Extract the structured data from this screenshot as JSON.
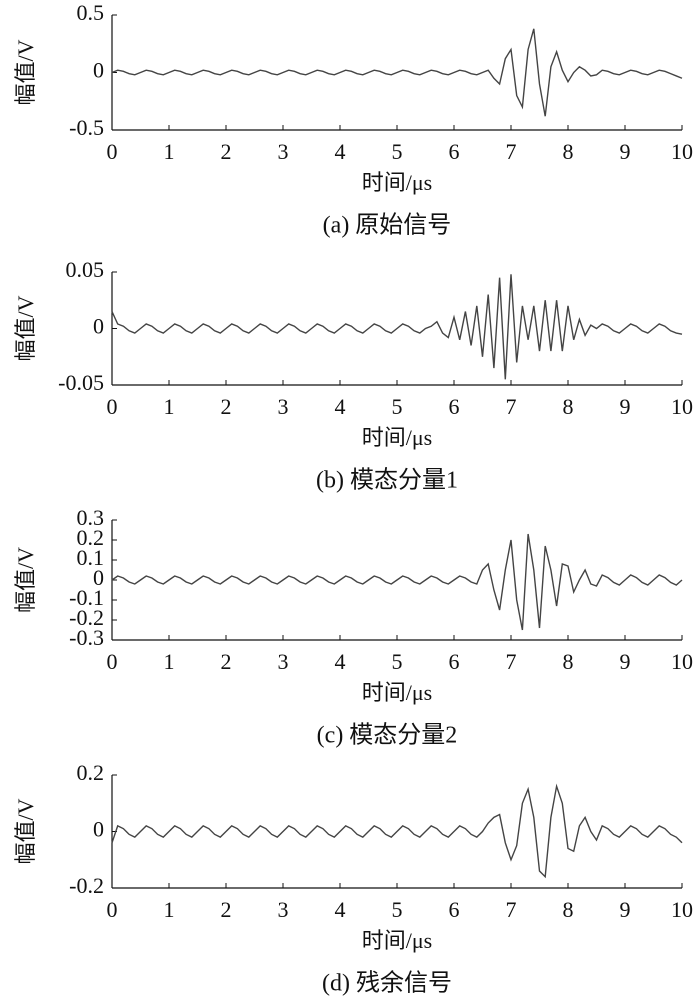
{
  "chart_data": [
    {
      "type": "line",
      "title": "(a) 原始信号",
      "xlabel": "时间/μs",
      "ylabel": "幅值/V",
      "color": "#444444",
      "xlim": [
        0,
        10
      ],
      "xticks": [
        0,
        1,
        2,
        3,
        4,
        5,
        6,
        7,
        8,
        9,
        10
      ],
      "ylim": [
        -0.5,
        0.5
      ],
      "yticks": [
        -0.5,
        0,
        0.5
      ],
      "x": [
        0,
        0.1,
        0.2,
        0.3,
        0.4,
        0.5,
        0.6,
        0.7,
        0.8,
        0.9,
        1,
        1.1,
        1.2,
        1.3,
        1.4,
        1.5,
        1.6,
        1.7,
        1.8,
        1.9,
        2,
        2.1,
        2.2,
        2.3,
        2.4,
        2.5,
        2.6,
        2.7,
        2.8,
        2.9,
        3,
        3.1,
        3.2,
        3.3,
        3.4,
        3.5,
        3.6,
        3.7,
        3.8,
        3.9,
        4,
        4.1,
        4.2,
        4.3,
        4.4,
        4.5,
        4.6,
        4.7,
        4.8,
        4.9,
        5,
        5.1,
        5.2,
        5.3,
        5.4,
        5.5,
        5.6,
        5.7,
        5.8,
        5.9,
        6,
        6.1,
        6.2,
        6.3,
        6.4,
        6.5,
        6.6,
        6.7,
        6.8,
        6.9,
        7,
        7.1,
        7.2,
        7.3,
        7.4,
        7.5,
        7.6,
        7.7,
        7.8,
        7.9,
        8,
        8.1,
        8.2,
        8.3,
        8.4,
        8.5,
        8.6,
        8.7,
        8.8,
        8.9,
        9,
        9.1,
        9.2,
        9.3,
        9.4,
        9.5,
        9.6,
        9.7,
        9.8,
        9.9,
        10
      ],
      "values": [
        0,
        0.02,
        0.01,
        -0.01,
        -0.02,
        0,
        0.02,
        0.01,
        -0.01,
        -0.02,
        0,
        0.02,
        0.01,
        -0.01,
        -0.02,
        0,
        0.02,
        0.01,
        -0.01,
        -0.02,
        0,
        0.02,
        0.01,
        -0.01,
        -0.02,
        0,
        0.02,
        0.01,
        -0.01,
        -0.02,
        0,
        0.02,
        0.01,
        -0.01,
        -0.02,
        0,
        0.02,
        0.01,
        -0.01,
        -0.02,
        0,
        0.02,
        0.01,
        -0.01,
        -0.02,
        0,
        0.02,
        0.01,
        -0.01,
        -0.02,
        0,
        0.02,
        0.01,
        -0.01,
        -0.02,
        0,
        0.02,
        0.01,
        -0.01,
        -0.02,
        0,
        0.02,
        0.01,
        -0.01,
        -0.02,
        0,
        0.02,
        -0.05,
        -0.1,
        0.12,
        0.2,
        -0.2,
        -0.3,
        0.2,
        0.38,
        -0.1,
        -0.38,
        0.05,
        0.18,
        0.02,
        -0.08,
        0,
        0.05,
        0.02,
        -0.03,
        -0.02,
        0.02,
        0.01,
        -0.01,
        -0.02,
        0,
        0.02,
        0.01,
        -0.01,
        -0.02,
        0,
        0.02,
        0.01,
        -0.01,
        -0.03,
        -0.05
      ]
    },
    {
      "type": "line",
      "title": "(b) 模态分量1",
      "xlabel": "时间/μs",
      "ylabel": "幅值/V",
      "color": "#444444",
      "xlim": [
        0,
        10
      ],
      "xticks": [
        0,
        1,
        2,
        3,
        4,
        5,
        6,
        7,
        8,
        9,
        10
      ],
      "ylim": [
        -0.05,
        0.05
      ],
      "yticks": [
        -0.05,
        0,
        0.05
      ],
      "x": [
        0,
        0.1,
        0.2,
        0.3,
        0.4,
        0.5,
        0.6,
        0.7,
        0.8,
        0.9,
        1,
        1.1,
        1.2,
        1.3,
        1.4,
        1.5,
        1.6,
        1.7,
        1.8,
        1.9,
        2,
        2.1,
        2.2,
        2.3,
        2.4,
        2.5,
        2.6,
        2.7,
        2.8,
        2.9,
        3,
        3.1,
        3.2,
        3.3,
        3.4,
        3.5,
        3.6,
        3.7,
        3.8,
        3.9,
        4,
        4.1,
        4.2,
        4.3,
        4.4,
        4.5,
        4.6,
        4.7,
        4.8,
        4.9,
        5,
        5.1,
        5.2,
        5.3,
        5.4,
        5.5,
        5.6,
        5.7,
        5.8,
        5.9,
        6,
        6.1,
        6.2,
        6.3,
        6.4,
        6.5,
        6.6,
        6.7,
        6.8,
        6.9,
        7,
        7.1,
        7.2,
        7.3,
        7.4,
        7.5,
        7.6,
        7.7,
        7.8,
        7.9,
        8,
        8.1,
        8.2,
        8.3,
        8.4,
        8.5,
        8.6,
        8.7,
        8.8,
        8.9,
        9,
        9.1,
        9.2,
        9.3,
        9.4,
        9.5,
        9.6,
        9.7,
        9.8,
        9.9,
        10
      ],
      "values": [
        0.015,
        0.004,
        0.002,
        -0.002,
        -0.004,
        0,
        0.004,
        0.002,
        -0.002,
        -0.004,
        0,
        0.004,
        0.002,
        -0.002,
        -0.004,
        0,
        0.004,
        0.002,
        -0.002,
        -0.004,
        0,
        0.004,
        0.002,
        -0.002,
        -0.004,
        0,
        0.004,
        0.002,
        -0.002,
        -0.004,
        0,
        0.004,
        0.002,
        -0.002,
        -0.004,
        0,
        0.004,
        0.002,
        -0.002,
        -0.004,
        0,
        0.004,
        0.002,
        -0.002,
        -0.004,
        0,
        0.004,
        0.002,
        -0.002,
        -0.004,
        0,
        0.004,
        0.002,
        -0.002,
        -0.004,
        0,
        0.002,
        0.006,
        -0.004,
        -0.008,
        0.01,
        -0.01,
        0.015,
        -0.015,
        0.02,
        -0.025,
        0.03,
        -0.035,
        0.045,
        -0.045,
        0.048,
        -0.03,
        0.02,
        -0.01,
        0.02,
        -0.02,
        0.025,
        -0.02,
        0.025,
        -0.02,
        0.02,
        -0.01,
        0.008,
        -0.006,
        0.003,
        0,
        0.004,
        0.002,
        -0.002,
        -0.004,
        0,
        0.004,
        0.002,
        -0.002,
        -0.004,
        0,
        0.004,
        0.002,
        -0.002,
        -0.004,
        -0.005
      ]
    },
    {
      "type": "line",
      "title": "(c) 模态分量2",
      "xlabel": "时间/μs",
      "ylabel": "幅值/V",
      "color": "#444444",
      "xlim": [
        0,
        10
      ],
      "xticks": [
        0,
        1,
        2,
        3,
        4,
        5,
        6,
        7,
        8,
        9,
        10
      ],
      "ylim": [
        -0.3,
        0.3
      ],
      "yticks": [
        -0.3,
        -0.2,
        -0.1,
        0,
        0.1,
        0.2,
        0.3
      ],
      "x": [
        0,
        0.1,
        0.2,
        0.3,
        0.4,
        0.5,
        0.6,
        0.7,
        0.8,
        0.9,
        1,
        1.1,
        1.2,
        1.3,
        1.4,
        1.5,
        1.6,
        1.7,
        1.8,
        1.9,
        2,
        2.1,
        2.2,
        2.3,
        2.4,
        2.5,
        2.6,
        2.7,
        2.8,
        2.9,
        3,
        3.1,
        3.2,
        3.3,
        3.4,
        3.5,
        3.6,
        3.7,
        3.8,
        3.9,
        4,
        4.1,
        4.2,
        4.3,
        4.4,
        4.5,
        4.6,
        4.7,
        4.8,
        4.9,
        5,
        5.1,
        5.2,
        5.3,
        5.4,
        5.5,
        5.6,
        5.7,
        5.8,
        5.9,
        6,
        6.1,
        6.2,
        6.3,
        6.4,
        6.5,
        6.6,
        6.7,
        6.8,
        6.9,
        7,
        7.1,
        7.2,
        7.3,
        7.4,
        7.5,
        7.6,
        7.7,
        7.8,
        7.9,
        8,
        8.1,
        8.2,
        8.3,
        8.4,
        8.5,
        8.6,
        8.7,
        8.8,
        8.9,
        9,
        9.1,
        9.2,
        9.3,
        9.4,
        9.5,
        9.6,
        9.7,
        9.8,
        9.9,
        10
      ],
      "values": [
        0,
        0.02,
        0.01,
        -0.01,
        -0.02,
        0,
        0.02,
        0.01,
        -0.01,
        -0.02,
        0,
        0.02,
        0.01,
        -0.01,
        -0.02,
        0,
        0.02,
        0.01,
        -0.01,
        -0.02,
        0,
        0.02,
        0.01,
        -0.01,
        -0.02,
        0,
        0.02,
        0.01,
        -0.01,
        -0.02,
        0,
        0.02,
        0.01,
        -0.01,
        -0.02,
        0,
        0.02,
        0.01,
        -0.01,
        -0.02,
        0,
        0.02,
        0.01,
        -0.01,
        -0.02,
        0,
        0.02,
        0.01,
        -0.01,
        -0.02,
        0,
        0.02,
        0.01,
        -0.01,
        -0.02,
        0,
        0.02,
        0.01,
        -0.01,
        -0.02,
        0,
        0.02,
        0.01,
        -0.01,
        -0.02,
        0.05,
        0.08,
        -0.05,
        -0.15,
        0.05,
        0.2,
        -0.1,
        -0.25,
        0.23,
        0.05,
        -0.24,
        0.17,
        0.05,
        -0.13,
        0.08,
        0.07,
        -0.06,
        0,
        0.05,
        -0.02,
        -0.03,
        0.025,
        0.012,
        -0.012,
        -0.025,
        0,
        0.025,
        0.012,
        -0.012,
        -0.025,
        0,
        0.025,
        0.012,
        -0.012,
        -0.025,
        0
      ]
    },
    {
      "type": "line",
      "title": "(d) 残余信号",
      "xlabel": "时间/μs",
      "ylabel": "幅值/V",
      "color": "#444444",
      "xlim": [
        0,
        10
      ],
      "xticks": [
        0,
        1,
        2,
        3,
        4,
        5,
        6,
        7,
        8,
        9,
        10
      ],
      "ylim": [
        -0.2,
        0.2
      ],
      "yticks": [
        -0.2,
        0,
        0.2
      ],
      "x": [
        0,
        0.1,
        0.2,
        0.3,
        0.4,
        0.5,
        0.6,
        0.7,
        0.8,
        0.9,
        1,
        1.1,
        1.2,
        1.3,
        1.4,
        1.5,
        1.6,
        1.7,
        1.8,
        1.9,
        2,
        2.1,
        2.2,
        2.3,
        2.4,
        2.5,
        2.6,
        2.7,
        2.8,
        2.9,
        3,
        3.1,
        3.2,
        3.3,
        3.4,
        3.5,
        3.6,
        3.7,
        3.8,
        3.9,
        4,
        4.1,
        4.2,
        4.3,
        4.4,
        4.5,
        4.6,
        4.7,
        4.8,
        4.9,
        5,
        5.1,
        5.2,
        5.3,
        5.4,
        5.5,
        5.6,
        5.7,
        5.8,
        5.9,
        6,
        6.1,
        6.2,
        6.3,
        6.4,
        6.5,
        6.6,
        6.7,
        6.8,
        6.9,
        7,
        7.1,
        7.2,
        7.3,
        7.4,
        7.5,
        7.6,
        7.7,
        7.8,
        7.9,
        8,
        8.1,
        8.2,
        8.3,
        8.4,
        8.5,
        8.6,
        8.7,
        8.8,
        8.9,
        9,
        9.1,
        9.2,
        9.3,
        9.4,
        9.5,
        9.6,
        9.7,
        9.8,
        9.9,
        10
      ],
      "values": [
        -0.04,
        0.02,
        0.01,
        -0.01,
        -0.02,
        0,
        0.02,
        0.01,
        -0.01,
        -0.02,
        0,
        0.02,
        0.01,
        -0.01,
        -0.02,
        0,
        0.02,
        0.01,
        -0.01,
        -0.02,
        0,
        0.02,
        0.01,
        -0.01,
        -0.02,
        0,
        0.02,
        0.01,
        -0.01,
        -0.02,
        0,
        0.02,
        0.01,
        -0.01,
        -0.02,
        0,
        0.02,
        0.01,
        -0.01,
        -0.02,
        0,
        0.02,
        0.01,
        -0.01,
        -0.02,
        0,
        0.02,
        0.01,
        -0.01,
        -0.02,
        0,
        0.02,
        0.01,
        -0.01,
        -0.02,
        0,
        0.02,
        0.01,
        -0.01,
        -0.02,
        0,
        0.02,
        0.01,
        -0.01,
        -0.02,
        0,
        0.03,
        0.05,
        0.06,
        -0.04,
        -0.1,
        -0.05,
        0.1,
        0.15,
        0.05,
        -0.14,
        -0.16,
        0.05,
        0.16,
        0.1,
        -0.06,
        -0.07,
        0.02,
        0.05,
        0,
        -0.03,
        0.02,
        0.01,
        -0.01,
        -0.02,
        0,
        0.02,
        0.01,
        -0.01,
        -0.02,
        0,
        0.02,
        0.01,
        -0.01,
        -0.02,
        -0.04
      ]
    }
  ]
}
